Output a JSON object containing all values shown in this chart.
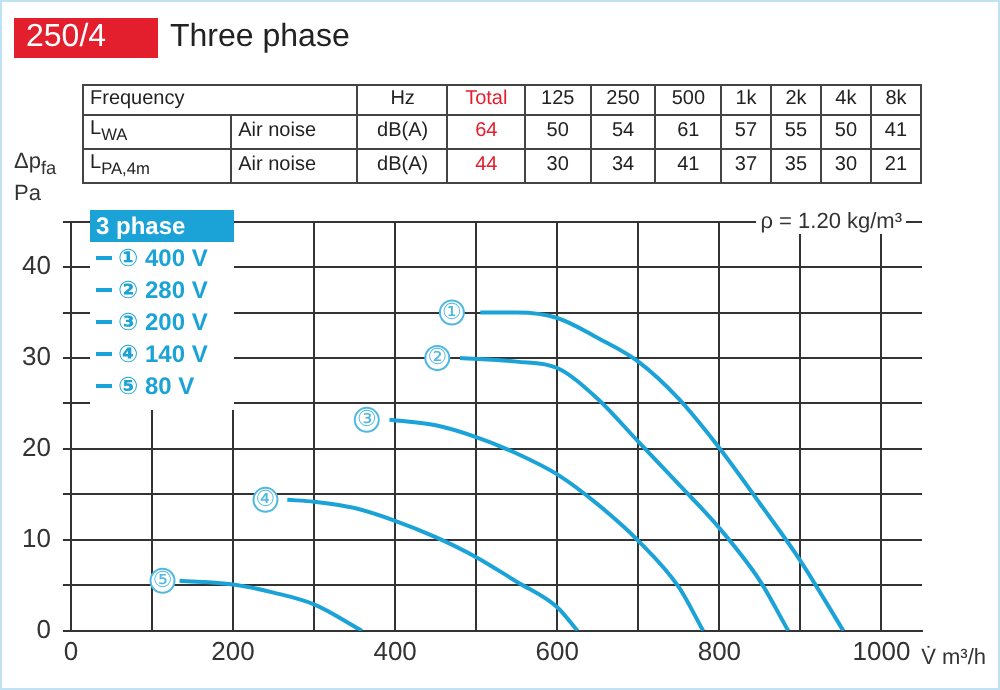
{
  "chart_data": {
    "type": "line",
    "title": "250/4",
    "subtitle": "Three phase",
    "xlabel": "V̇ m³/h",
    "ylabel": "Δp$_{fa}$\nPa",
    "legend_title": "3 phase",
    "legend": "top left",
    "grid": true,
    "marker": "none",
    "line_style": "solid",
    "xlim": [
      0,
      1050
    ],
    "ylim": [
      0,
      45
    ],
    "xticks": [
      0,
      {
        "value": 100,
        "label": null
      },
      200,
      {
        "value": 300,
        "label": null
      },
      400,
      {
        "value": 500,
        "label": null
      },
      600,
      {
        "value": 700,
        "label": null
      },
      800,
      {
        "value": 900,
        "label": null
      },
      1000
    ],
    "yticks": [
      0,
      {
        "value": 5,
        "label": null
      },
      10,
      {
        "value": 15,
        "label": null
      },
      20,
      {
        "value": 25,
        "label": null
      },
      30,
      {
        "value": 35,
        "label": null
      },
      40,
      {
        "value": 45,
        "label": null
      }
    ],
    "series": [
      {
        "name": "① 400 V",
        "color": "#1ba3d8",
        "x": [
          505,
          550,
          600,
          650,
          700,
          750,
          800,
          850,
          900,
          953
        ],
        "values": [
          35,
          35,
          34.4,
          32.2,
          29.6,
          25.5,
          20.1,
          14,
          7.7,
          0
        ]
      },
      {
        "name": "② 280 V",
        "color": "#1ba3d8",
        "x": [
          480,
          550,
          600,
          650,
          700,
          750,
          800,
          850,
          885
        ],
        "values": [
          30,
          29.6,
          28.9,
          25.5,
          20.8,
          16.1,
          11.3,
          5.5,
          0
        ]
      },
      {
        "name": "③ 200 V",
        "color": "#1ba3d8",
        "x": [
          393,
          450,
          500,
          550,
          600,
          650,
          700,
          750,
          780
        ],
        "values": [
          23.2,
          22.6,
          21.3,
          19.5,
          17.2,
          13.9,
          9.9,
          4.8,
          0
        ]
      },
      {
        "name": "④ 140 V",
        "color": "#1ba3d8",
        "x": [
          267,
          300,
          350,
          400,
          450,
          500,
          550,
          600,
          625
        ],
        "values": [
          14.4,
          14.2,
          13.5,
          12.1,
          10.3,
          8.1,
          5.4,
          2.6,
          0
        ]
      },
      {
        "name": "⑤ 80 V",
        "color": "#1ba3d8",
        "x": [
          134,
          200,
          250,
          300,
          359
        ],
        "values": [
          5.5,
          5.1,
          4.2,
          2.9,
          0
        ]
      }
    ],
    "annotations": [
      "Frequency\t\tHz\tTotal\t125\t250\t500\t1k\t2k\t4k\t8k",
      "L$_{WA}$\tAir noise\tdB(A)\t64\t50\t54\t61\t57\t55\t50\t41",
      "L$_{PA,4m}$\tAir noise\tdB(A)\t44\t30\t34\t41\t37\t35\t30\t21",
      "ρ = 1.20 kg/m³",
      {
        "text": "①",
        "x": 470,
        "y": 35
      },
      {
        "text": "②",
        "x": 452,
        "y": 30
      },
      {
        "text": "③",
        "x": 365,
        "y": 23.2
      },
      {
        "text": "④",
        "x": 240,
        "y": 14.4
      },
      {
        "text": "⑤",
        "x": 113,
        "y": 5.5
      }
    ]
  }
}
